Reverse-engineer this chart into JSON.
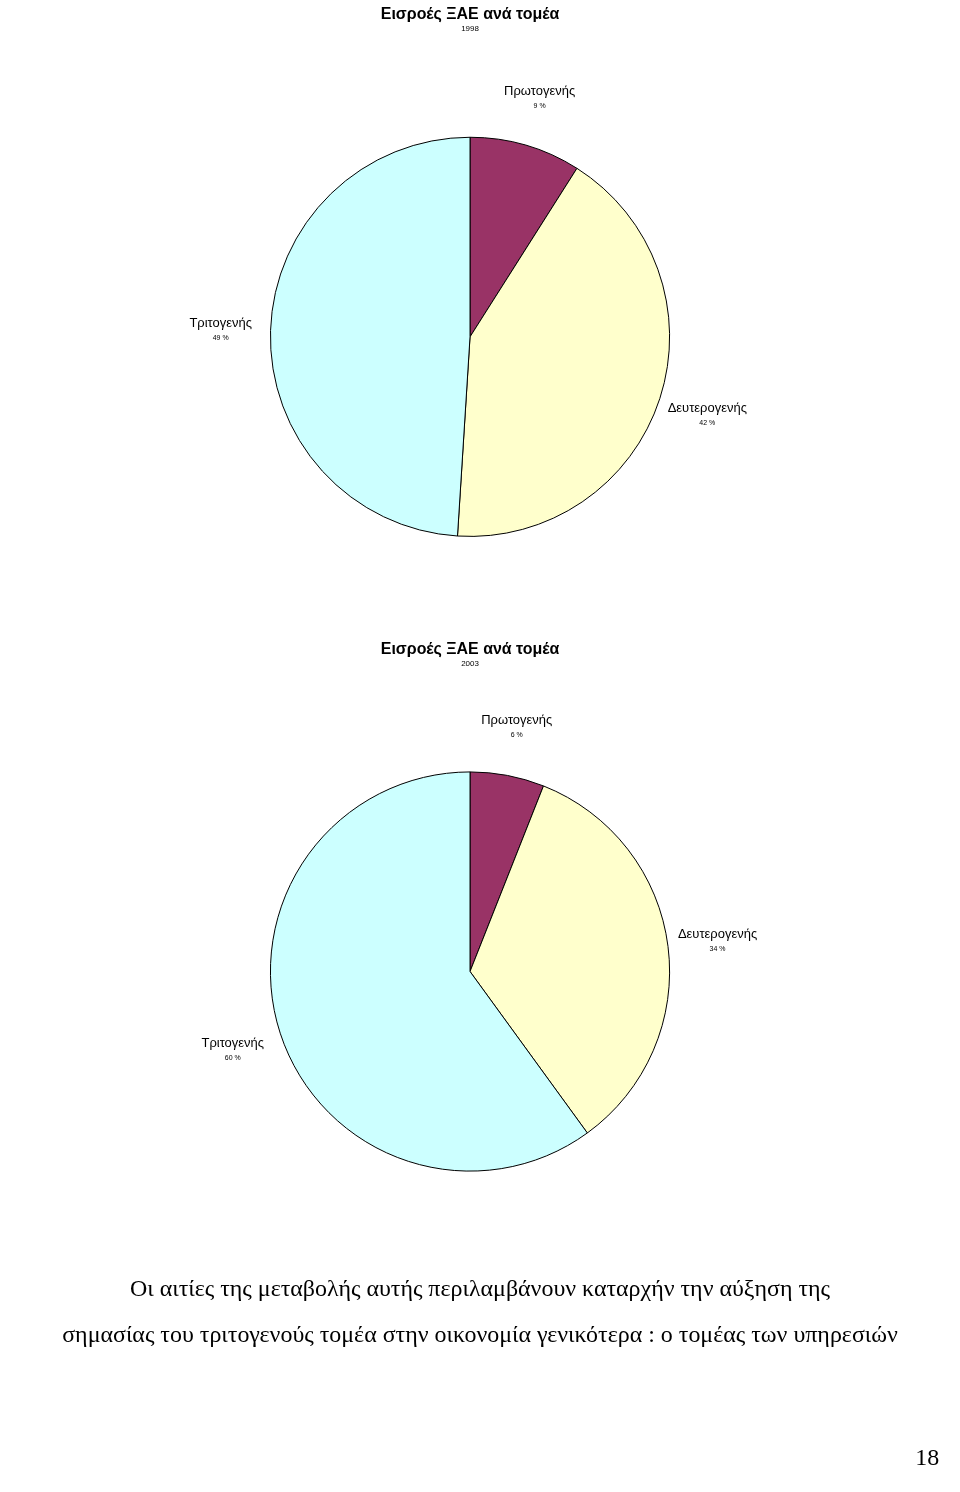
{
  "chart_data": [
    {
      "type": "pie",
      "title": "Εισροές ΞΑΕ ανά τομέα",
      "subtitle": "1998",
      "categories": [
        "Πρωτογενής",
        "Δευτερογενής",
        "Τριτογενής"
      ],
      "values": [
        9,
        42,
        49
      ],
      "colors": [
        "#993366",
        "#ffffcc",
        "#ccffff"
      ],
      "value_labels": [
        "9 %",
        "42 %",
        "49 %"
      ],
      "legend": false
    },
    {
      "type": "pie",
      "title": "Εισροές ΞΑΕ ανά τομέα",
      "subtitle": "2003",
      "categories": [
        "Πρωτογενής",
        "Δευτερογενής",
        "Τριτογενής"
      ],
      "values": [
        6,
        34,
        60
      ],
      "colors": [
        "#993366",
        "#ffffcc",
        "#ccffff"
      ],
      "value_labels": [
        "6 %",
        "34 %",
        "60 %"
      ],
      "legend": false
    },
    {
      "type": "other",
      "annotations": [
        "Οι αιτίες της μεταβολής αυτής περιλαμβάνουν καταρχήν την αύξηση της",
        "σημασίας του τριτογενούς τομέα στην οικονομία γενικότερα : ο τομέας των υπηρεσιών",
        "18"
      ]
    }
  ]
}
